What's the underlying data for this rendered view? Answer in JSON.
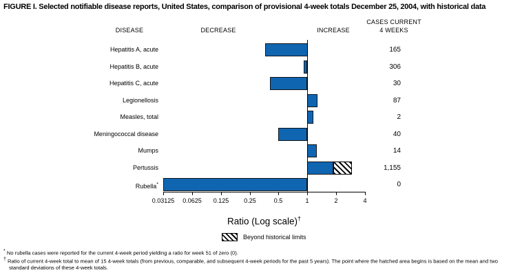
{
  "figure": {
    "title": "FIGURE I. Selected notifiable disease reports, United States, comparison of provisional 4-week totals December 25, 2004, with historical data",
    "headers": {
      "disease": "DISEASE",
      "decrease": "DECREASE",
      "increase": "INCREASE",
      "cases_line1": "CASES CURRENT",
      "cases_line2": "4 WEEKS"
    },
    "legend": {
      "swatch_pattern": "diagonal-hatch",
      "label": "Beyond historical limits"
    },
    "footnotes": [
      {
        "marker": "*",
        "text": "No rubella cases were reported for the current 4-week period yielding a ratio for week 51 of zero (0)."
      },
      {
        "marker": "†",
        "text": "Ratio of current 4-week total to mean of 15 4-week totals (from previous, comparable, and subsequent 4-week periods for the past 5 years). The point where the hatched area begins is based on the mean and two standard deviations of these 4-week totals."
      }
    ],
    "colors": {
      "bar_blue": "#1065b1",
      "axis_black": "#000000"
    }
  },
  "chart_data": {
    "type": "bar",
    "orientation": "horizontal",
    "xlabel": "Ratio (Log scale)",
    "xlabel_sup": "†",
    "x_scale": "log2",
    "xlim": [
      0.03125,
      4
    ],
    "baseline_ratio": 1,
    "x_ticks": [
      0.03125,
      0.0625,
      0.125,
      0.25,
      0.5,
      1,
      2,
      4
    ],
    "x_tick_labels": [
      "0.03125",
      "0.0625",
      "0.125",
      "0.25",
      "0.5",
      "1",
      "2",
      "4"
    ],
    "rows": [
      {
        "label": "Hepatitis A, acute",
        "ratio": 0.36,
        "cases": "165"
      },
      {
        "label": "Hepatitis B, acute",
        "ratio": 0.92,
        "cases": "306"
      },
      {
        "label": "Hepatitis C, acute",
        "ratio": 0.41,
        "cases": "30"
      },
      {
        "label": "Legionellosis",
        "ratio": 1.28,
        "cases": "87"
      },
      {
        "label": "Measles, total",
        "ratio": 1.16,
        "cases": "2"
      },
      {
        "label": "Meningococcal disease",
        "ratio": 0.5,
        "cases": "40"
      },
      {
        "label": "Mumps",
        "ratio": 1.26,
        "cases": "14"
      },
      {
        "label": "Pertussis",
        "ratio": 2.92,
        "hatch_start": 1.88,
        "beyond_historical_limits": true,
        "cases": "1,155"
      },
      {
        "label": "Rubella",
        "label_sup": "*",
        "ratio": 0,
        "cases": "0"
      }
    ]
  }
}
